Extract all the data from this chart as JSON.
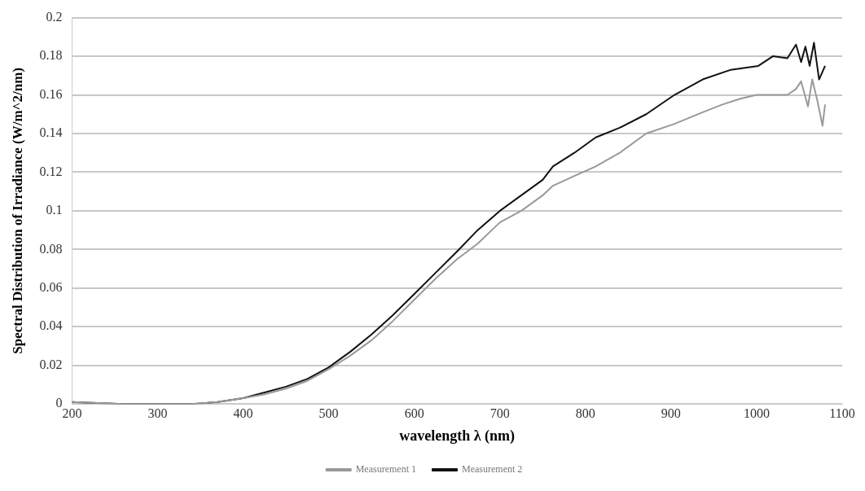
{
  "chart_data": {
    "type": "line",
    "xlabel": "wavelength λ (nm)",
    "ylabel": "Spectral Distribution of Irradiance (W/m^2/nm)",
    "xlim": [
      200,
      1100
    ],
    "xticks": [
      200,
      300,
      400,
      500,
      600,
      700,
      800,
      900,
      1000,
      1100
    ],
    "ylim": [
      0,
      0.2
    ],
    "yticks": [
      0,
      0.02,
      0.04,
      0.06,
      0.08,
      0.1,
      0.12,
      0.14,
      0.16,
      0.18,
      0.2
    ],
    "grid": "y",
    "legend": "bottom",
    "marker": "none",
    "line_style": "solid",
    "series": [
      {
        "name": "Measurement 1",
        "color": "#999999",
        "x": [
          200,
          230,
          260,
          300,
          340,
          370,
          400,
          425,
          450,
          475,
          500,
          525,
          550,
          575,
          600,
          625,
          650,
          674,
          700,
          725,
          750,
          762,
          787,
          812,
          840,
          871,
          904,
          937,
          960,
          981,
          1000,
          1019,
          1036,
          1046,
          1052,
          1060,
          1065,
          1071,
          1077,
          1080
        ],
        "values": [
          0.001,
          0.0005,
          0,
          0,
          0,
          0.001,
          0.003,
          0.005,
          0.008,
          0.012,
          0.018,
          0.025,
          0.033,
          0.043,
          0.054,
          0.065,
          0.075,
          0.083,
          0.094,
          0.1,
          0.108,
          0.113,
          0.118,
          0.123,
          0.13,
          0.14,
          0.145,
          0.151,
          0.155,
          0.158,
          0.16,
          0.16,
          0.16,
          0.163,
          0.167,
          0.154,
          0.168,
          0.157,
          0.144,
          0.155
        ]
      },
      {
        "name": "Measurement 2",
        "color": "#111111",
        "x": [
          200,
          230,
          260,
          300,
          340,
          370,
          400,
          425,
          450,
          475,
          500,
          525,
          550,
          575,
          600,
          625,
          650,
          674,
          700,
          725,
          750,
          762,
          787,
          812,
          840,
          871,
          904,
          937,
          970,
          1002,
          1019,
          1036,
          1046,
          1052,
          1057,
          1062,
          1067,
          1073,
          1077,
          1080
        ],
        "values": [
          0.001,
          0.0005,
          0,
          0,
          0,
          0.001,
          0.003,
          0.006,
          0.009,
          0.013,
          0.019,
          0.027,
          0.036,
          0.046,
          0.057,
          0.068,
          0.079,
          0.09,
          0.1,
          0.108,
          0.116,
          0.123,
          0.13,
          0.138,
          0.143,
          0.15,
          0.16,
          0.168,
          0.173,
          0.175,
          0.18,
          0.179,
          0.186,
          0.177,
          0.185,
          0.175,
          0.187,
          0.168,
          0.172,
          0.175
        ]
      }
    ]
  }
}
